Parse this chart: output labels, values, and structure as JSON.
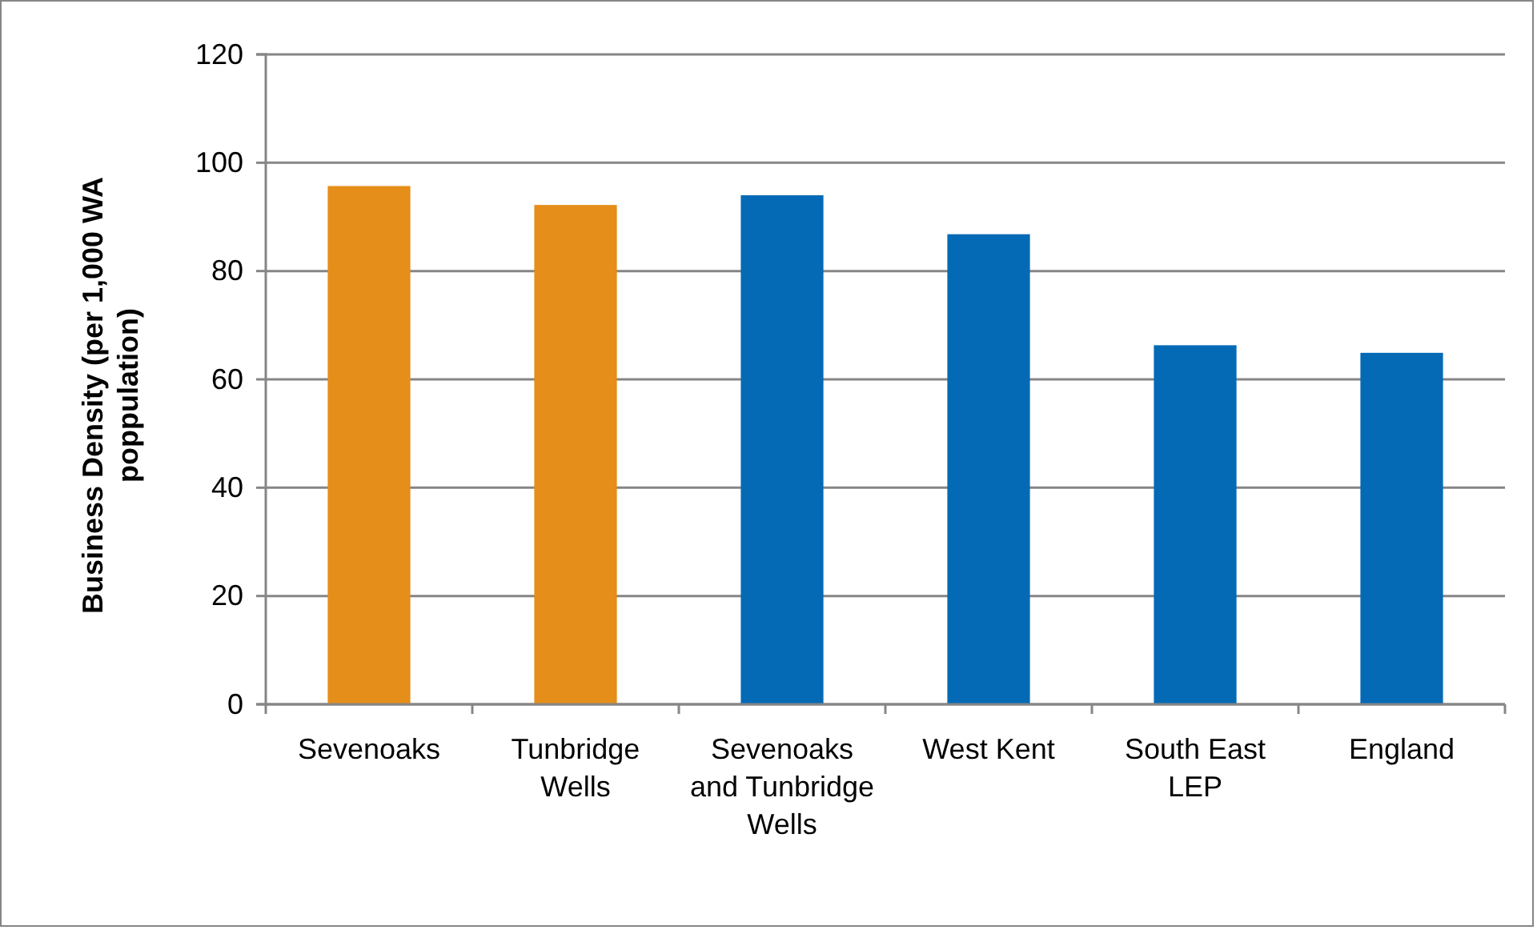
{
  "chart_data": {
    "type": "bar",
    "ylabel": "Business Density (per 1,000 WA poppulation)",
    "categories": [
      "Sevenoaks",
      "Tunbridge Wells",
      "Sevenoaks and Tunbridge Wells",
      "West Kent",
      "South East LEP",
      "England"
    ],
    "values": [
      95.7,
      92.2,
      94.0,
      86.8,
      66.3,
      64.9
    ],
    "colors": [
      "#e58e1a",
      "#e58e1a",
      "#046ab5",
      "#046ab5",
      "#046ab5",
      "#046ab5"
    ],
    "ylim": [
      0,
      120
    ],
    "yticks": [
      0,
      20,
      40,
      60,
      80,
      100,
      120
    ],
    "grid": "y"
  }
}
